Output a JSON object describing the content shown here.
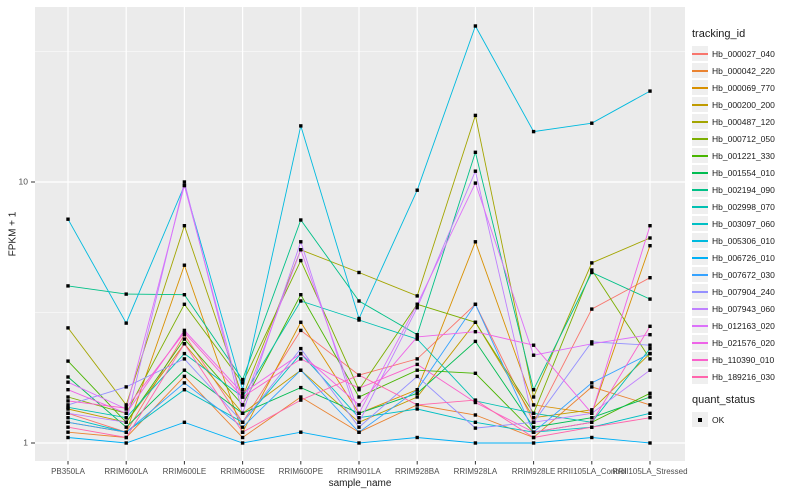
{
  "chart_data": {
    "type": "line",
    "title": "",
    "xlabel": "sample_name",
    "ylabel": "FPKM + 1",
    "y_scale": "log10",
    "y_ticks": [
      "1",
      "10"
    ],
    "y_tick_values": [
      1,
      10
    ],
    "y_minor_values": [
      3.1623,
      31.623
    ],
    "ylim": [
      0.85,
      45
    ],
    "grid": "white-on-gray-panel",
    "panel_color": "#EBEBEB",
    "point_marker": "black-square",
    "categories": [
      "PB350LA",
      "RRIM600LA",
      "RRIM600LE",
      "RRIM600SE",
      "RRIM600PE",
      "RRIM901LA",
      "RRIM928BA",
      "RRIM928LA",
      "RRIM928LE",
      "RRII105LA_Control",
      "RRII105LA_Stressed"
    ],
    "series": [
      {
        "name": "Hb_000027_040",
        "color": "#F8766D",
        "values": [
          1.3,
          1.1,
          2.6,
          1.2,
          2.7,
          1.82,
          2.1,
          3.4,
          1.2,
          3.26,
          4.3
        ]
      },
      {
        "name": "Hb_000042_220",
        "color": "#EA8331",
        "values": [
          1.1,
          1.05,
          1.8,
          1.05,
          1.5,
          1.1,
          1.4,
          1.28,
          1.05,
          1.64,
          1.4
        ]
      },
      {
        "name": "Hb_000069_770",
        "color": "#D89000",
        "values": [
          1.2,
          1.1,
          4.8,
          1.1,
          2.9,
          1.3,
          1.6,
          5.9,
          1.4,
          1.3,
          5.7
        ]
      },
      {
        "name": "Hb_000200_200",
        "color": "#C09B00",
        "values": [
          1.35,
          1.2,
          2.4,
          1.3,
          1.9,
          1.2,
          1.5,
          2.9,
          1.25,
          1.34,
          2.2
        ]
      },
      {
        "name": "Hb_000487_120",
        "color": "#A3A500",
        "values": [
          2.76,
          1.4,
          6.8,
          1.5,
          5.5,
          4.5,
          3.66,
          18.0,
          1.5,
          4.9,
          6.1
        ]
      },
      {
        "name": "Hb_000712_050",
        "color": "#7CAE00",
        "values": [
          1.5,
          1.3,
          3.4,
          1.7,
          5.0,
          1.6,
          3.4,
          2.9,
          1.3,
          4.6,
          2.1
        ]
      },
      {
        "name": "Hb_001221_330",
        "color": "#49B500",
        "values": [
          2.06,
          1.2,
          2.5,
          1.4,
          3.7,
          1.5,
          1.9,
          1.85,
          1.1,
          1.2,
          1.55
        ]
      },
      {
        "name": "Hb_001554_010",
        "color": "#00BC51",
        "values": [
          1.79,
          1.15,
          1.9,
          1.3,
          1.63,
          1.3,
          1.55,
          2.45,
          1.15,
          1.25,
          1.5
        ]
      },
      {
        "name": "Hb_002194_090",
        "color": "#00C087",
        "values": [
          4.0,
          3.72,
          3.7,
          1.75,
          7.15,
          3.5,
          2.6,
          13.0,
          1.6,
          4.5,
          3.56
        ]
      },
      {
        "name": "Hb_002998_070",
        "color": "#00C0B2",
        "values": [
          1.37,
          1.25,
          2.2,
          1.5,
          3.5,
          2.96,
          2.5,
          1.45,
          1.3,
          1.2,
          2.3
        ]
      },
      {
        "name": "Hb_003097_060",
        "color": "#00BFC4",
        "values": [
          1.25,
          1.1,
          1.6,
          1.2,
          2.2,
          1.25,
          1.35,
          1.2,
          1.1,
          1.15,
          1.3
        ]
      },
      {
        "name": "Hb_005306_010",
        "color": "#00BADE",
        "values": [
          7.2,
          2.88,
          9.7,
          1.6,
          16.4,
          3.0,
          9.3,
          39.6,
          15.6,
          16.8,
          22.3
        ]
      },
      {
        "name": "Hb_006726_010",
        "color": "#00B0F6",
        "values": [
          1.05,
          1.0,
          1.2,
          1.0,
          1.1,
          1.0,
          1.05,
          1.0,
          1.0,
          1.05,
          1.0
        ]
      },
      {
        "name": "Hb_007672_030",
        "color": "#35A2FF",
        "values": [
          1.2,
          1.1,
          1.7,
          1.15,
          1.9,
          1.1,
          1.6,
          3.4,
          1.1,
          1.7,
          2.2
        ]
      },
      {
        "name": "Hb_007904_240",
        "color": "#9590FF",
        "values": [
          1.4,
          1.64,
          2.1,
          1.2,
          2.3,
          1.15,
          1.8,
          1.14,
          1.2,
          2.44,
          2.37
        ]
      },
      {
        "name": "Hb_007943_060",
        "color": "#BF80FF",
        "values": [
          1.3,
          1.2,
          10.0,
          1.3,
          5.9,
          1.2,
          3.3,
          11.0,
          1.2,
          1.3,
          1.9
        ]
      },
      {
        "name": "Hb_012163_020",
        "color": "#DC71FA",
        "values": [
          1.71,
          1.35,
          9.7,
          1.4,
          5.5,
          1.3,
          3.4,
          9.9,
          2.17,
          2.4,
          2.6
        ]
      },
      {
        "name": "Hb_021576_020",
        "color": "#EE64E8",
        "values": [
          1.6,
          1.3,
          2.7,
          1.55,
          2.2,
          1.4,
          2.55,
          2.67,
          2.37,
          1.3,
          6.8
        ]
      },
      {
        "name": "Hb_110390_010",
        "color": "#FA61CC",
        "values": [
          1.45,
          1.36,
          2.65,
          1.5,
          2.1,
          1.62,
          2.0,
          1.43,
          1.1,
          1.2,
          2.8
        ]
      },
      {
        "name": "Hb_189216_030",
        "color": "#FF65AC",
        "values": [
          1.15,
          1.05,
          2.4,
          1.1,
          1.46,
          1.82,
          1.4,
          1.46,
          1.05,
          1.15,
          1.25
        ]
      }
    ],
    "legend": {
      "tracking_title": "tracking_id",
      "quant_title": "quant_status",
      "quant_items": [
        {
          "label": "OK",
          "marker": "black-square"
        }
      ]
    }
  }
}
